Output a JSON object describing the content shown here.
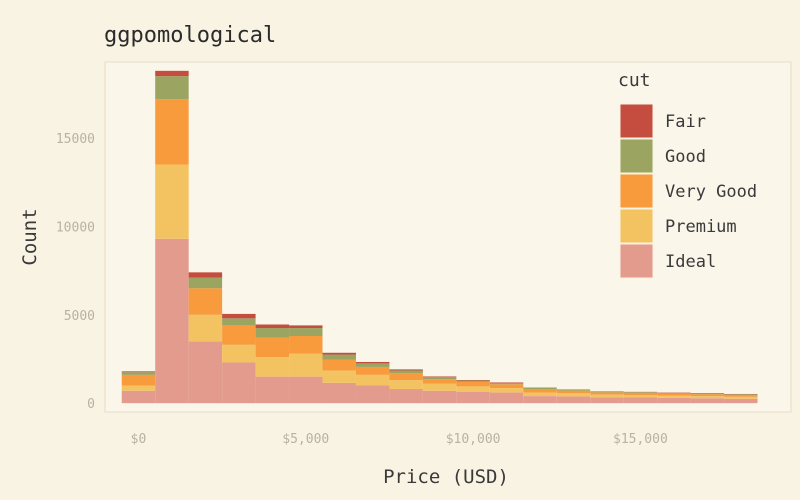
{
  "chart_data": {
    "type": "bar",
    "stacked": true,
    "title": "ggpomological",
    "xlabel": "Price (USD)",
    "ylabel": "Count",
    "xlim": [
      -1000,
      19500
    ],
    "ylim": [
      -500,
      19300
    ],
    "x_ticks": [
      0,
      5000,
      10000,
      15000
    ],
    "x_tick_labels": [
      "$0",
      "$5,000",
      "$10,000",
      "$15,000"
    ],
    "y_ticks": [
      0,
      5000,
      10000,
      15000
    ],
    "y_tick_labels": [
      "0",
      "5000",
      "10000",
      "15000"
    ],
    "bin_width": 1000,
    "x": [
      0,
      1000,
      2000,
      3000,
      4000,
      5000,
      6000,
      7000,
      8000,
      9000,
      10000,
      11000,
      12000,
      13000,
      14000,
      15000,
      16000,
      17000,
      18000
    ],
    "grid": false,
    "legend": {
      "title": "cut",
      "position": "right"
    },
    "series": [
      {
        "name": "Ideal",
        "color": "#e39b8e",
        "values": [
          700,
          9300,
          3500,
          2300,
          1500,
          1500,
          1150,
          1000,
          800,
          700,
          650,
          600,
          400,
          380,
          330,
          320,
          300,
          280,
          250
        ]
      },
      {
        "name": "Premium",
        "color": "#f3c362",
        "values": [
          300,
          4200,
          1500,
          1000,
          1100,
          1300,
          700,
          600,
          500,
          400,
          300,
          250,
          200,
          180,
          150,
          140,
          130,
          120,
          110
        ]
      },
      {
        "name": "Very Good",
        "color": "#f79b3d",
        "values": [
          600,
          3700,
          1500,
          1100,
          1100,
          1000,
          600,
          450,
          400,
          250,
          250,
          220,
          200,
          150,
          130,
          120,
          110,
          110,
          100
        ]
      },
      {
        "name": "Good",
        "color": "#9ca461",
        "values": [
          150,
          1300,
          600,
          400,
          550,
          450,
          300,
          200,
          150,
          120,
          80,
          70,
          60,
          50,
          40,
          40,
          40,
          40,
          40
        ]
      },
      {
        "name": "Fair",
        "color": "#c54d3f",
        "values": [
          50,
          300,
          300,
          250,
          200,
          150,
          100,
          80,
          60,
          40,
          30,
          30,
          20,
          20,
          20,
          20,
          20,
          20,
          20
        ]
      }
    ],
    "legend_order": [
      "Fair",
      "Good",
      "Very Good",
      "Premium",
      "Ideal"
    ]
  }
}
